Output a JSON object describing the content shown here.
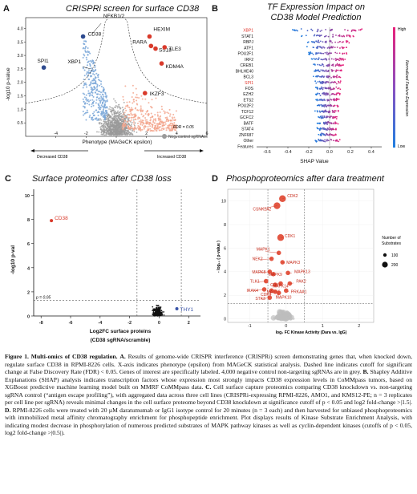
{
  "panels": {
    "A": {
      "letter": "A",
      "title": "CRISPRi screen for surface CD38",
      "xlabel": "Phenotype (MAGeCK epsilon)",
      "ylabel": "-log10 p-value",
      "fdr_label": "FDR = 0.05",
      "legend": "Neg. control sgRNAs",
      "decreased": "Decreased CD38",
      "increased": "Increased CD38",
      "xticks": [
        "-4",
        "-2",
        "0",
        "2",
        "4",
        "6"
      ],
      "yticks": [
        "0.5",
        "1.0",
        "1.5",
        "2.0",
        "2.5",
        "3.0",
        "3.5",
        "4.0"
      ],
      "colors": {
        "neg": "#2e4b8f",
        "pos": "#d93a2b",
        "grey": "#9a9a9a",
        "lightblue": "#7aa7d8",
        "salmon": "#f2a28a"
      },
      "genes": [
        {
          "name": "CD38",
          "x": -2.2,
          "y": 3.7,
          "side": "neg"
        },
        {
          "name": "SPI1",
          "x": -4.8,
          "y": 2.55,
          "side": "neg"
        },
        {
          "name": "XBP1",
          "x": -1.7,
          "y": 2.5,
          "side": "neg"
        },
        {
          "name": "NFKB1/2",
          "x": -1.6,
          "y": 3.8,
          "side": "neg"
        },
        {
          "name": "HEXIM",
          "x": 2.2,
          "y": 3.7,
          "side": "pos"
        },
        {
          "name": "RARA",
          "x": 2.3,
          "y": 3.35,
          "side": "pos"
        },
        {
          "name": "SS18",
          "x": 2.6,
          "y": 3.25,
          "side": "pos"
        },
        {
          "name": "TLE3",
          "x": 3.2,
          "y": 3.3,
          "side": "pos"
        },
        {
          "name": "KDM4A",
          "x": 3.0,
          "y": 2.7,
          "side": "pos"
        },
        {
          "name": "IKZF3",
          "x": 1.9,
          "y": 1.6,
          "side": "pos"
        }
      ]
    },
    "B": {
      "letter": "B",
      "title_line1": "TF Expression Impact on",
      "title_line2": "CD38 Model Prediction",
      "xlabel": "SHAP Value",
      "colorbar_label": "Normalized Feature Expression",
      "high": "High",
      "low": "Low",
      "xticks": [
        "-0.6",
        "-0.4",
        "-0.2",
        "0.0",
        "0.2",
        "0.4"
      ],
      "features": [
        {
          "name": "XBP1",
          "highlight": true,
          "spread": 0.35
        },
        {
          "name": "STAT1",
          "highlight": false,
          "spread": 0.25
        },
        {
          "name": "RBPJ",
          "highlight": false,
          "spread": 0.2
        },
        {
          "name": "ATF1",
          "highlight": false,
          "spread": 0.18
        },
        {
          "name": "POU2F1",
          "highlight": false,
          "spread": 0.18
        },
        {
          "name": "IRF2",
          "highlight": false,
          "spread": 0.16
        },
        {
          "name": "CREB1",
          "highlight": false,
          "spread": 0.15
        },
        {
          "name": "BHLHE40",
          "highlight": false,
          "spread": 0.14
        },
        {
          "name": "BCL3",
          "highlight": false,
          "spread": 0.13
        },
        {
          "name": "SPI1",
          "highlight": true,
          "spread": 0.13
        },
        {
          "name": "FOS",
          "highlight": false,
          "spread": 0.12
        },
        {
          "name": "EZH2",
          "highlight": false,
          "spread": 0.11
        },
        {
          "name": "ETS2",
          "highlight": false,
          "spread": 0.11
        },
        {
          "name": "POU2F2",
          "highlight": false,
          "spread": 0.1
        },
        {
          "name": "TCF12",
          "highlight": false,
          "spread": 0.1
        },
        {
          "name": "GCFC2",
          "highlight": false,
          "spread": 0.09
        },
        {
          "name": "BATF",
          "highlight": false,
          "spread": 0.09
        },
        {
          "name": "STAT4",
          "highlight": false,
          "spread": 0.09
        },
        {
          "name": "ZNF687",
          "highlight": false,
          "spread": 0.08
        },
        {
          "name": "Other",
          "highlight": false,
          "spread": 0.12
        },
        {
          "name": "Features",
          "highlight": false,
          "spread": 0
        }
      ],
      "colors": {
        "high": "#e8217a",
        "low": "#1f7fe0",
        "highlight": "#e0342a"
      }
    },
    "C": {
      "letter": "C",
      "title": "Surface proteomics after CD38 loss",
      "xlabel_line1": "Log2FC surface proteins",
      "xlabel_line2": "(CD38 sgRNA/scramble)",
      "ylabel": "-log10 p-val",
      "pline": "p = 0.05",
      "xticks": [
        "-8",
        "-6",
        "-4",
        "-2",
        "0",
        "2"
      ],
      "yticks": [
        "0",
        "2",
        "4",
        "6",
        "8",
        "10"
      ],
      "points": [
        {
          "name": "CD38",
          "x": -7.3,
          "y": 7.9,
          "color": "#d93a2b"
        },
        {
          "name": "THY1",
          "x": 1.2,
          "y": 0.6,
          "color": "#3a54a8"
        }
      ]
    },
    "D": {
      "letter": "D",
      "title": "Phosphoproteomics after dara treatment",
      "xlabel": "log₂ FC Kinase Activity (Dara vs. IgG)",
      "ylabel": "- log₁₀ ( p-value )",
      "size_legend_title_line1": "Number of",
      "size_legend_title_line2": "Substrates",
      "size_legend_values": [
        "100",
        "200"
      ],
      "xticks": [
        "-1",
        "0",
        "1",
        "2"
      ],
      "yticks": [
        "0",
        "2",
        "4",
        "6",
        "8",
        "10"
      ],
      "kinases": [
        {
          "name": "CDK2",
          "x": -0.1,
          "y": 10.2
        },
        {
          "name": "CSNK2A2",
          "x": -0.25,
          "y": 9.6
        },
        {
          "name": "CDK1",
          "x": -0.15,
          "y": 6.9
        },
        {
          "name": "NEK2",
          "x": -0.4,
          "y": 5.1
        },
        {
          "name": "MAPK1",
          "x": -0.2,
          "y": 5.6
        },
        {
          "name": "MAPK3",
          "x": -0.1,
          "y": 4.8
        },
        {
          "name": "MAPK8",
          "x": -0.45,
          "y": 4.0
        },
        {
          "name": "MAPK9",
          "x": -0.35,
          "y": 3.8
        },
        {
          "name": "MAPK13",
          "x": 0.05,
          "y": 3.9
        },
        {
          "name": "TLK1",
          "x": -0.55,
          "y": 3.2
        },
        {
          "name": "CDK5",
          "x": -0.3,
          "y": 2.9
        },
        {
          "name": "MAPK14",
          "x": -0.15,
          "y": 3.0
        },
        {
          "name": "PAK2",
          "x": 0.1,
          "y": 3.0
        },
        {
          "name": "IRAK4",
          "x": -0.6,
          "y": 2.5
        },
        {
          "name": "MAPK6",
          "x": -0.4,
          "y": 2.4
        },
        {
          "name": "CDK4",
          "x": -0.3,
          "y": 2.3
        },
        {
          "name": "MAPK10",
          "x": -0.2,
          "y": 2.2
        },
        {
          "name": "PRKAA1",
          "x": 0.0,
          "y": 2.4
        },
        {
          "name": "STK3",
          "x": -0.45,
          "y": 1.8
        }
      ]
    }
  },
  "caption": {
    "fig_label": "Figure 1. Multi-omics of CD38 regulation.",
    "a_label": "A.",
    "a_text": " Results of genome-wide CRISPR interference (CRISPRi) screen demonstrating genes that, when knocked down, regulate surface CD38 in RPMI-8226 cells. X-axis indicates phenotype (epsilon) from MAGeCK statistical analysis. Dashed line indicates cutoff for significant change at False Discovery Rate (FDR) < 0.05. Genes of interest are specifically labeled. 4,000 negative control non-targeting sgRNAs are in grey.",
    "b_label": "B.",
    "b_text": " Shapley Additive Explanations (SHAP) analysis indicates transcription factors whose expression most strongly impacts CD38 expression levels in CoMMpass tumors, based on XGBoost predictive machine learning model built on MMRF CoMMpass data.",
    "c_label": "C.",
    "c_text": " Cell surface capture proteomics comparing CD38 knockdown vs. non-targeting sgRNA control (“antigen escape profiling”), with aggregated data across three cell lines (CRISPRi-expressing RPMI-8226, AMO1, and KMS12-PE; n = 3 replicates per cell line per sgRNA) reveals minimal changes in the cell surface proteome beyond CD38 knockdown at significance cutoff of p < 0.05 and log2 fold-change >|1.5|.",
    "d_label": "D.",
    "d_text": " RPMI-8226 cells were treated with 20 µM daratumumab or IgG1 isotype control for 20 minutes (n = 3 each) and then harvested for unbiased phosphoproteomics with immobilized metal affinity chromatography enrichment for phosphopeptide enrichment. Plot displays results of Kinase Substrate Enrichment Analysis, with indicating modest decrease in phosphorylation of numerous predicted substrates of MAPK pathway kinases as well as cyclin-dependent kinases (cutoffs of p < 0.05, log2 fold-change >|0.5|)."
  }
}
